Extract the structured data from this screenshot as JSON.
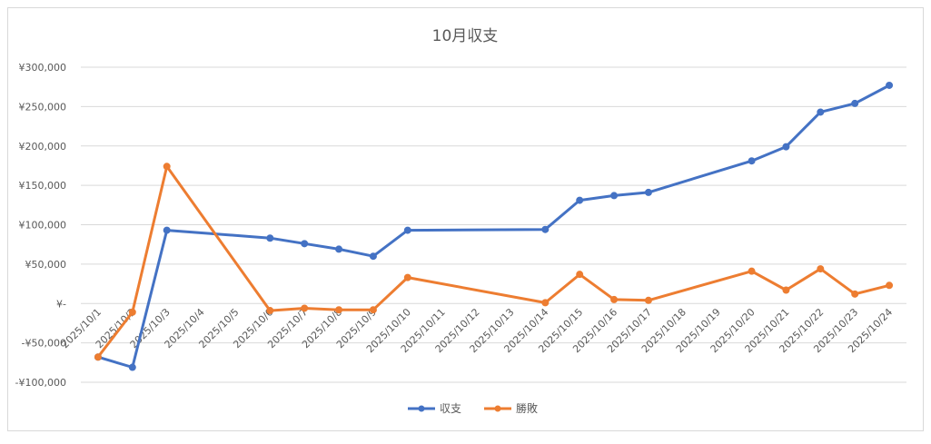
{
  "chart_data": {
    "type": "line",
    "title": "10月収支",
    "categories": [
      "2025/10/1",
      "2025/10/2",
      "2025/10/3",
      "2025/10/4",
      "2025/10/5",
      "2025/10/6",
      "2025/10/7",
      "2025/10/8",
      "2025/10/9",
      "2025/10/10",
      "2025/10/11",
      "2025/10/12",
      "2025/10/13",
      "2025/10/14",
      "2025/10/15",
      "2025/10/16",
      "2025/10/17",
      "2025/10/18",
      "2025/10/19",
      "2025/10/20",
      "2025/10/21",
      "2025/10/22",
      "2025/10/23",
      "2025/10/24"
    ],
    "y_ticks": [
      {
        "value": 300000,
        "label": "¥300,000"
      },
      {
        "value": 250000,
        "label": "¥250,000"
      },
      {
        "value": 200000,
        "label": "¥200,000"
      },
      {
        "value": 150000,
        "label": "¥150,000"
      },
      {
        "value": 100000,
        "label": "¥100,000"
      },
      {
        "value": 50000,
        "label": "¥50,000"
      },
      {
        "value": 0,
        "label": "¥-"
      },
      {
        "value": -50000,
        "label": "-¥50,000"
      },
      {
        "value": -100000,
        "label": "-¥100,000"
      }
    ],
    "ylim": [
      -100000,
      300000
    ],
    "grid": true,
    "legend_position": "bottom",
    "series": [
      {
        "name": "収支",
        "color": "#4472c4",
        "values": [
          -68000,
          -81000,
          93000,
          null,
          null,
          83000,
          76000,
          69000,
          60000,
          93000,
          null,
          null,
          null,
          94000,
          131000,
          137000,
          141000,
          null,
          null,
          181000,
          199000,
          243000,
          254000,
          277000
        ]
      },
      {
        "name": "勝敗",
        "color": "#ed7d31",
        "values": [
          -68000,
          -11000,
          174000,
          null,
          null,
          -9000,
          -6000,
          -8000,
          -8000,
          33000,
          null,
          null,
          null,
          1000,
          37000,
          5000,
          4000,
          null,
          null,
          41000,
          17000,
          44000,
          12000,
          23000
        ]
      }
    ]
  }
}
